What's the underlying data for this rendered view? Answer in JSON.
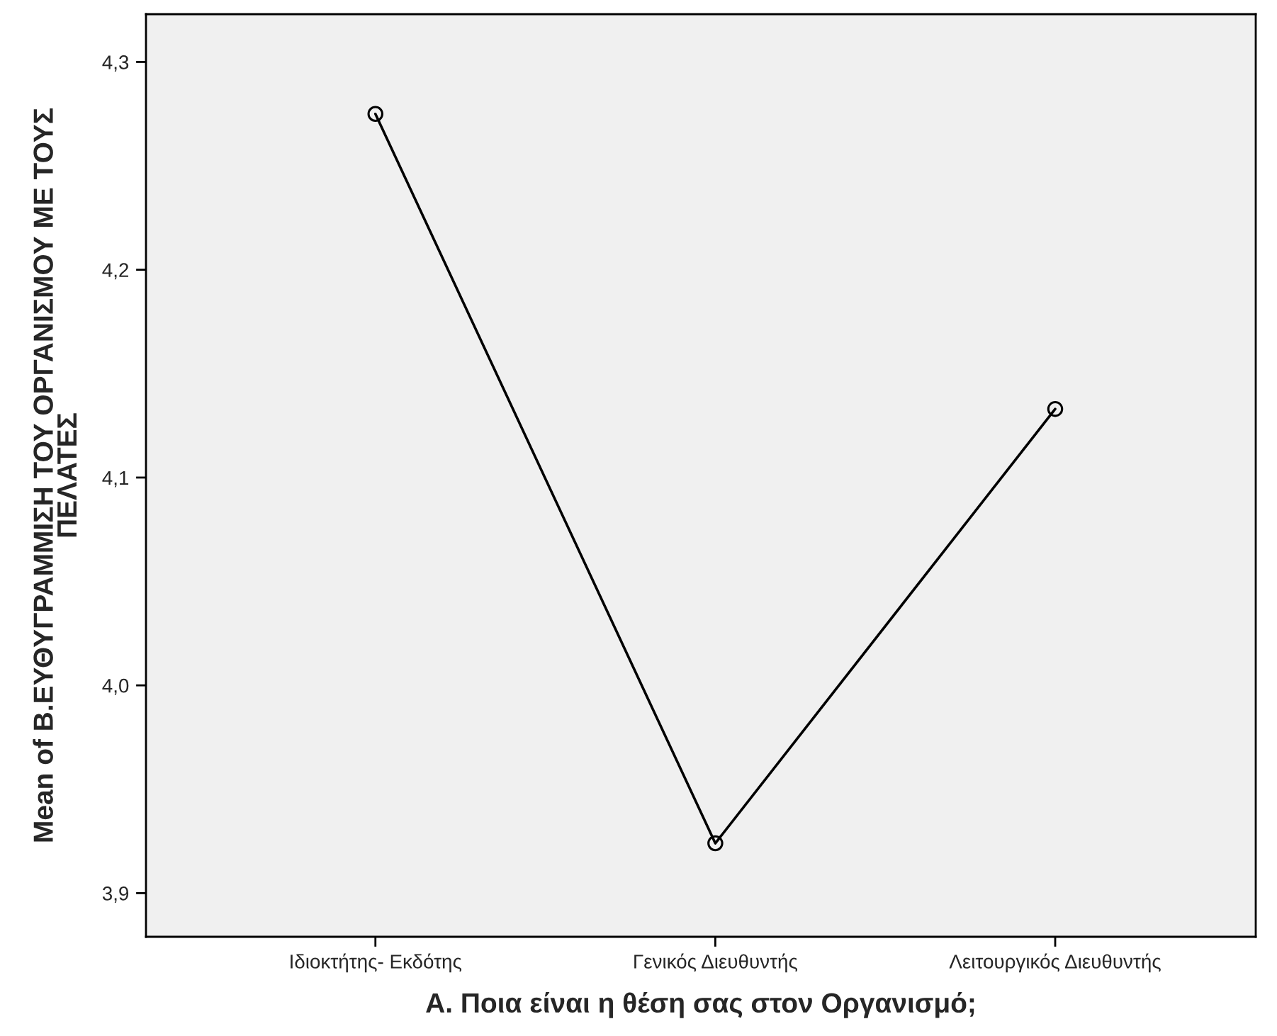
{
  "chart_data": {
    "type": "line",
    "xlabel": "Α. Ποια είναι η θέση σας στον Οργανισμό;",
    "ylabel": "Mean of Β.ΕΥΘΥΓΡΑΜΜΙΣΗ ΤΟΥ ΟΡΓΑΝΙΣΜΟΥ ΜΕ ΤΟΥΣ\nΠΕΛΑΤΕΣ",
    "categories": [
      "Ιδιοκτήτης- Εκδότης",
      "Γενικός Διευθυντής",
      "Λειτουργικός Διευθυντής"
    ],
    "series": [
      {
        "color": "#000000",
        "values": [
          4.275,
          3.924,
          4.133
        ]
      }
    ],
    "ylim": [
      3.879,
      4.323
    ],
    "yticks": [
      {
        "value": 3.9,
        "label": "3,9"
      },
      {
        "value": 4.0,
        "label": "4,0"
      },
      {
        "value": 4.1,
        "label": "4,1"
      },
      {
        "value": 4.2,
        "label": "4,2"
      },
      {
        "value": 4.3,
        "label": "4,3"
      }
    ],
    "marker": "circle",
    "line_style": "solid",
    "grid": false,
    "legend": false
  }
}
